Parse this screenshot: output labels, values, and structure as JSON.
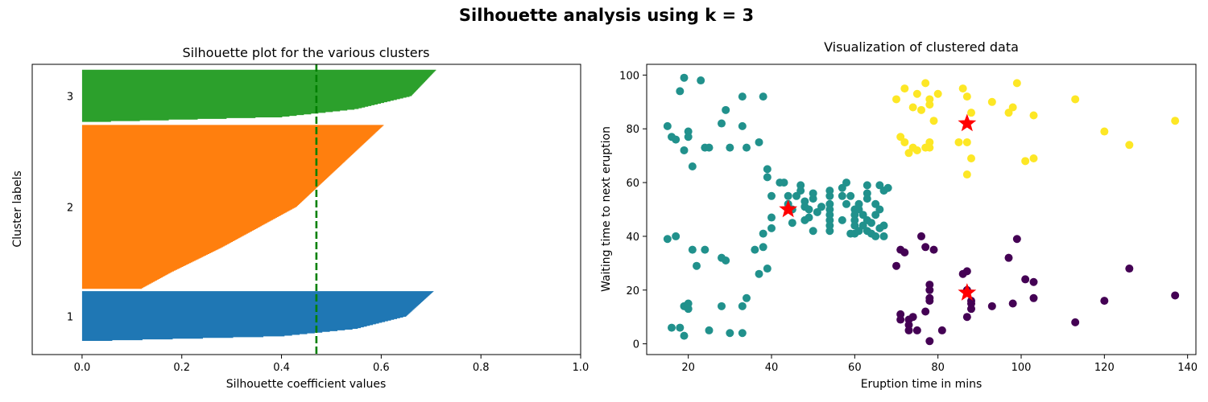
{
  "suptitle": "Silhouette analysis using k = 3",
  "colors": {
    "cluster_1": "#1f77b4",
    "cluster_2": "#ff7f0e",
    "cluster_3": "#2ca02c",
    "avg_line": "#008000",
    "scatter_purple": "#440154",
    "scatter_teal": "#21918c",
    "scatter_yellow": "#fde725",
    "centroid": "#ff0000"
  },
  "chart_data": [
    {
      "type": "bar",
      "orientation": "horizontal",
      "title": "Silhouette plot for the various clusters",
      "xlabel": "Silhouette coefficient values",
      "ylabel": "Cluster labels",
      "xlim": [
        -0.1,
        1.0
      ],
      "xticks": [
        "0.0",
        "0.2",
        "0.4",
        "0.6",
        "0.8",
        "1.0"
      ],
      "average_silhouette": 0.47,
      "clusters": [
        {
          "label": "1",
          "size": 67,
          "max": 0.705,
          "p50": 0.65,
          "p75": 0.55,
          "p90": 0.4,
          "min": 0.0
        },
        {
          "label": "2",
          "size": 217,
          "max": 0.605,
          "p50": 0.43,
          "p75": 0.28,
          "p90": 0.18,
          "min": 0.12
        },
        {
          "label": "3",
          "size": 70,
          "max": 0.71,
          "p50": 0.66,
          "p75": 0.55,
          "p90": 0.4,
          "min": 0.0
        }
      ]
    },
    {
      "type": "scatter",
      "title": "Visualization of clustered data",
      "xlabel": "Eruption time in mins",
      "ylabel": "Waiting time to next eruption",
      "xlim": [
        10,
        142
      ],
      "ylim": [
        -4,
        104
      ],
      "xticks": [
        "20",
        "40",
        "60",
        "80",
        "100",
        "120",
        "140"
      ],
      "yticks": [
        "0",
        "20",
        "40",
        "60",
        "80",
        "100"
      ],
      "series": [
        {
          "color": "#fde725",
          "points": [
            [
              70,
              91
            ],
            [
              71,
              77
            ],
            [
              72,
              75
            ],
            [
              72,
              95
            ],
            [
              73,
              71
            ],
            [
              74,
              73
            ],
            [
              74,
              88
            ],
            [
              75,
              72
            ],
            [
              75,
              93
            ],
            [
              76,
              87
            ],
            [
              77,
              97
            ],
            [
              77,
              73
            ],
            [
              78,
              89
            ],
            [
              78,
              91
            ],
            [
              78,
              75
            ],
            [
              78,
              73
            ],
            [
              79,
              83
            ],
            [
              80,
              93
            ],
            [
              85,
              75
            ],
            [
              86,
              95
            ],
            [
              87,
              92
            ],
            [
              87,
              75
            ],
            [
              88,
              86
            ],
            [
              88,
              69
            ],
            [
              87,
              63
            ],
            [
              93,
              90
            ],
            [
              97,
              86
            ],
            [
              98,
              88
            ],
            [
              99,
              97
            ],
            [
              101,
              68
            ],
            [
              103,
              85
            ],
            [
              103,
              69
            ],
            [
              113,
              91
            ],
            [
              120,
              79
            ],
            [
              126,
              74
            ],
            [
              137,
              83
            ]
          ]
        },
        {
          "color": "#21918c",
          "points": [
            [
              15,
              81
            ],
            [
              16,
              77
            ],
            [
              17,
              76
            ],
            [
              18,
              94
            ],
            [
              19,
              99
            ],
            [
              20,
              79
            ],
            [
              20,
              77
            ],
            [
              19,
              72
            ],
            [
              21,
              66
            ],
            [
              23,
              98
            ],
            [
              24,
              73
            ],
            [
              25,
              73
            ],
            [
              28,
              82
            ],
            [
              29,
              87
            ],
            [
              30,
              73
            ],
            [
              33,
              92
            ],
            [
              33,
              81
            ],
            [
              34,
              73
            ],
            [
              37,
              75
            ],
            [
              38,
              92
            ],
            [
              39,
              65
            ],
            [
              39,
              62
            ],
            [
              40,
              55
            ],
            [
              42,
              60
            ],
            [
              43,
              60
            ],
            [
              44,
              55
            ],
            [
              44,
              52
            ],
            [
              45,
              50
            ],
            [
              46,
              55
            ],
            [
              47,
              59
            ],
            [
              47,
              57
            ],
            [
              48,
              53
            ],
            [
              48,
              51
            ],
            [
              49,
              50
            ],
            [
              49,
              47
            ],
            [
              50,
              56
            ],
            [
              50,
              54
            ],
            [
              51,
              49
            ],
            [
              52,
              51
            ],
            [
              54,
              57
            ],
            [
              54,
              55
            ],
            [
              54,
              52
            ],
            [
              54,
              50
            ],
            [
              54,
              48
            ],
            [
              54,
              46
            ],
            [
              54,
              44
            ],
            [
              54,
              42
            ],
            [
              57,
              58
            ],
            [
              57,
              55
            ],
            [
              58,
              60
            ],
            [
              58,
              52
            ],
            [
              59,
              55
            ],
            [
              60,
              50
            ],
            [
              60,
              48
            ],
            [
              60,
              46
            ],
            [
              60,
              44
            ],
            [
              60,
              41
            ],
            [
              61,
              52
            ],
            [
              61,
              50
            ],
            [
              62,
              48
            ],
            [
              63,
              59
            ],
            [
              63,
              56
            ],
            [
              63,
              54
            ],
            [
              63,
              46
            ],
            [
              64,
              45
            ],
            [
              64,
              41
            ],
            [
              65,
              48
            ],
            [
              65,
              52
            ],
            [
              66,
              50
            ],
            [
              66,
              59
            ],
            [
              67,
              57
            ],
            [
              67,
              44
            ],
            [
              68,
              58
            ],
            [
              57,
              46
            ],
            [
              59,
              41
            ],
            [
              61,
              42
            ],
            [
              62,
              44
            ],
            [
              63,
              42
            ],
            [
              65,
              40
            ],
            [
              66,
              43
            ],
            [
              67,
              40
            ],
            [
              45,
              45
            ],
            [
              48,
              46
            ],
            [
              50,
              42
            ],
            [
              40,
              47
            ],
            [
              40,
              43
            ],
            [
              38,
              41
            ],
            [
              36,
              35
            ],
            [
              38,
              36
            ],
            [
              15,
              39
            ],
            [
              17,
              40
            ],
            [
              21,
              35
            ],
            [
              22,
              29
            ],
            [
              24,
              35
            ],
            [
              28,
              32
            ],
            [
              29,
              31
            ],
            [
              37,
              26
            ],
            [
              39,
              28
            ],
            [
              34,
              17
            ],
            [
              33,
              14
            ],
            [
              28,
              14
            ],
            [
              19,
              14
            ],
            [
              20,
              13
            ],
            [
              20,
              15
            ],
            [
              16,
              6
            ],
            [
              18,
              6
            ],
            [
              19,
              3
            ],
            [
              25,
              5
            ],
            [
              30,
              4
            ],
            [
              33,
              4
            ]
          ]
        },
        {
          "color": "#440154",
          "points": [
            [
              70,
              29
            ],
            [
              71,
              35
            ],
            [
              72,
              34
            ],
            [
              76,
              40
            ],
            [
              77,
              36
            ],
            [
              79,
              35
            ],
            [
              78,
              22
            ],
            [
              78,
              20
            ],
            [
              78,
              17
            ],
            [
              78,
              16
            ],
            [
              77,
              12
            ],
            [
              71,
              11
            ],
            [
              71,
              9
            ],
            [
              73,
              9
            ],
            [
              73,
              7
            ],
            [
              73,
              5
            ],
            [
              74,
              10
            ],
            [
              75,
              5
            ],
            [
              78,
              1
            ],
            [
              81,
              5
            ],
            [
              86,
              26
            ],
            [
              87,
              27
            ],
            [
              87,
              20
            ],
            [
              88,
              16
            ],
            [
              88,
              13
            ],
            [
              87,
              10
            ],
            [
              88,
              15
            ],
            [
              93,
              14
            ],
            [
              97,
              32
            ],
            [
              98,
              15
            ],
            [
              99,
              39
            ],
            [
              101,
              24
            ],
            [
              103,
              23
            ],
            [
              103,
              17
            ],
            [
              113,
              8
            ],
            [
              120,
              16
            ],
            [
              126,
              28
            ],
            [
              137,
              18
            ]
          ]
        }
      ],
      "centroids": [
        [
          44,
          50
        ],
        [
          87,
          82
        ],
        [
          87,
          19
        ]
      ]
    }
  ]
}
